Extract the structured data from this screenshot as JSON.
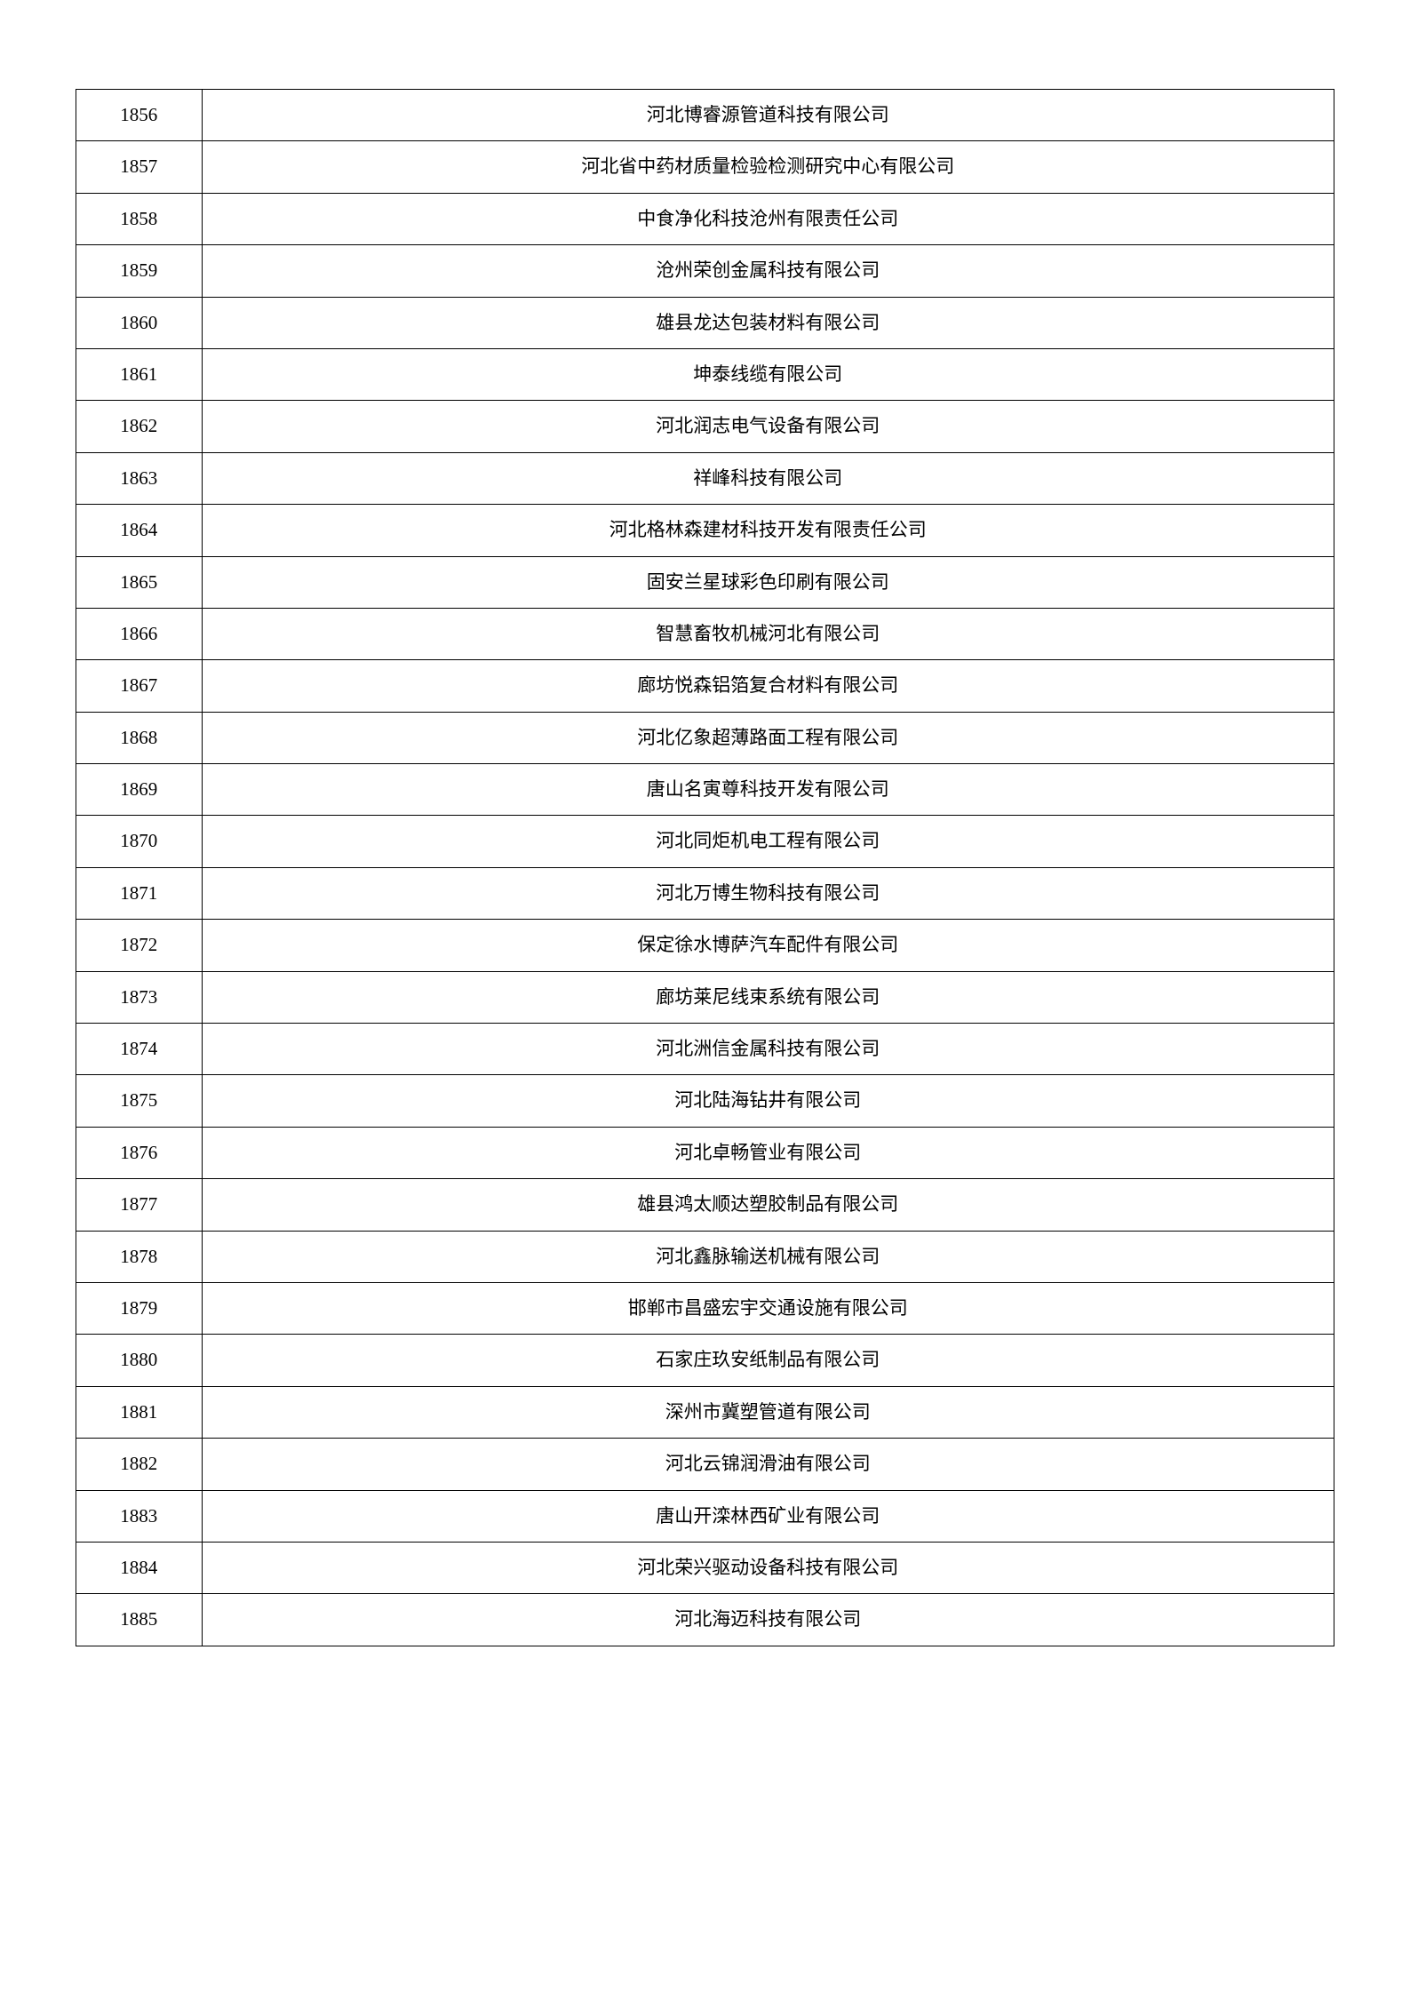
{
  "table": {
    "type": "table",
    "columns": [
      {
        "key": "num",
        "width_ratio": 0.1,
        "align": "center"
      },
      {
        "key": "name",
        "width_ratio": 0.9,
        "align": "center"
      }
    ],
    "border_color": "#000000",
    "border_width": 1.5,
    "background_color": "#ffffff",
    "text_color": "#000000",
    "font_size": 21,
    "cell_padding": 14,
    "rows": [
      {
        "num": "1856",
        "name": "河北博睿源管道科技有限公司"
      },
      {
        "num": "1857",
        "name": "河北省中药材质量检验检测研究中心有限公司"
      },
      {
        "num": "1858",
        "name": "中食净化科技沧州有限责任公司"
      },
      {
        "num": "1859",
        "name": "沧州荣创金属科技有限公司"
      },
      {
        "num": "1860",
        "name": "雄县龙达包装材料有限公司"
      },
      {
        "num": "1861",
        "name": "坤泰线缆有限公司"
      },
      {
        "num": "1862",
        "name": "河北润志电气设备有限公司"
      },
      {
        "num": "1863",
        "name": "祥峰科技有限公司"
      },
      {
        "num": "1864",
        "name": "河北格林森建材科技开发有限责任公司"
      },
      {
        "num": "1865",
        "name": "固安兰星球彩色印刷有限公司"
      },
      {
        "num": "1866",
        "name": "智慧畜牧机械河北有限公司"
      },
      {
        "num": "1867",
        "name": "廊坊悦森铝箔复合材料有限公司"
      },
      {
        "num": "1868",
        "name": "河北亿象超薄路面工程有限公司"
      },
      {
        "num": "1869",
        "name": "唐山名寅尊科技开发有限公司"
      },
      {
        "num": "1870",
        "name": "河北同炬机电工程有限公司"
      },
      {
        "num": "1871",
        "name": "河北万博生物科技有限公司"
      },
      {
        "num": "1872",
        "name": "保定徐水博萨汽车配件有限公司"
      },
      {
        "num": "1873",
        "name": "廊坊莱尼线束系统有限公司"
      },
      {
        "num": "1874",
        "name": "河北洲信金属科技有限公司"
      },
      {
        "num": "1875",
        "name": "河北陆海钻井有限公司"
      },
      {
        "num": "1876",
        "name": "河北卓畅管业有限公司"
      },
      {
        "num": "1877",
        "name": "雄县鸿太顺达塑胶制品有限公司"
      },
      {
        "num": "1878",
        "name": "河北鑫脉输送机械有限公司"
      },
      {
        "num": "1879",
        "name": "邯郸市昌盛宏宇交通设施有限公司"
      },
      {
        "num": "1880",
        "name": "石家庄玖安纸制品有限公司"
      },
      {
        "num": "1881",
        "name": "深州市冀塑管道有限公司"
      },
      {
        "num": "1882",
        "name": "河北云锦润滑油有限公司"
      },
      {
        "num": "1883",
        "name": "唐山开滦林西矿业有限公司"
      },
      {
        "num": "1884",
        "name": "河北荣兴驱动设备科技有限公司"
      },
      {
        "num": "1885",
        "name": "河北海迈科技有限公司"
      }
    ]
  }
}
